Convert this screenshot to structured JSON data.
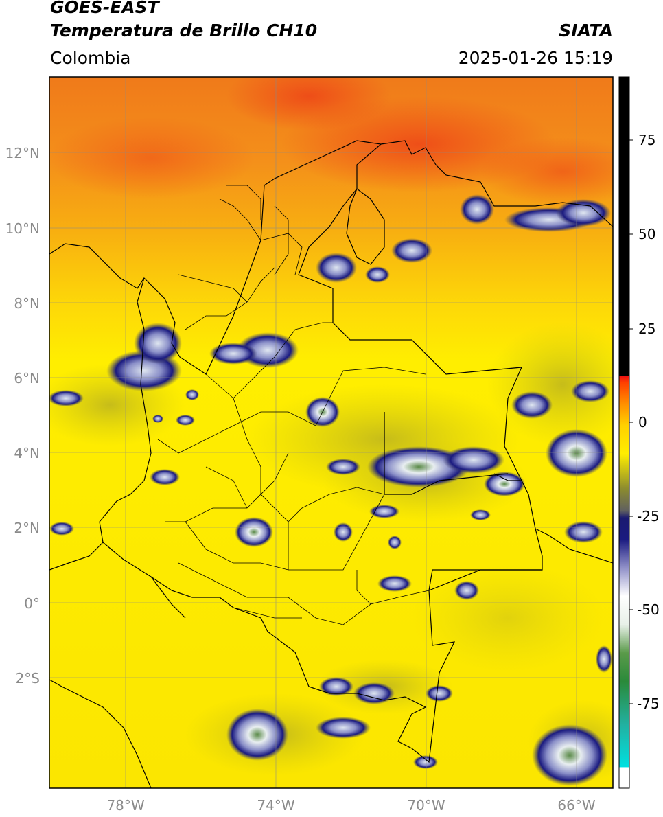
{
  "header": {
    "satellite": "GOES-EAST",
    "product": "Temperatura de Brillo CH10",
    "region": "Colombia",
    "source": "SIATA",
    "datetime": "2025-01-26 15:19"
  },
  "map": {
    "lat_labels": [
      "12°N",
      "10°N",
      "8°N",
      "6°N",
      "4°N",
      "2°N",
      "0°",
      "2°S"
    ],
    "lon_labels": [
      "78°W",
      "74°W",
      "70°W",
      "66°W"
    ],
    "extent": {
      "lon_min": -80,
      "lon_max": -65,
      "lat_min": -5,
      "lat_max": 14
    }
  },
  "colorbar": {
    "ticks": [
      "75",
      "50",
      "25",
      "0",
      "-25",
      "-50",
      "-75"
    ],
    "colors": {
      "black": "#000000",
      "red": "#ee1111",
      "orange": "#ff8800",
      "yellow": "#ffee00",
      "olive": "#88882a",
      "navy": "#1a1a80",
      "white": "#ffffff",
      "green": "#3a7a2a",
      "teal": "#22b0a0",
      "cyan": "#00e0e0"
    }
  }
}
